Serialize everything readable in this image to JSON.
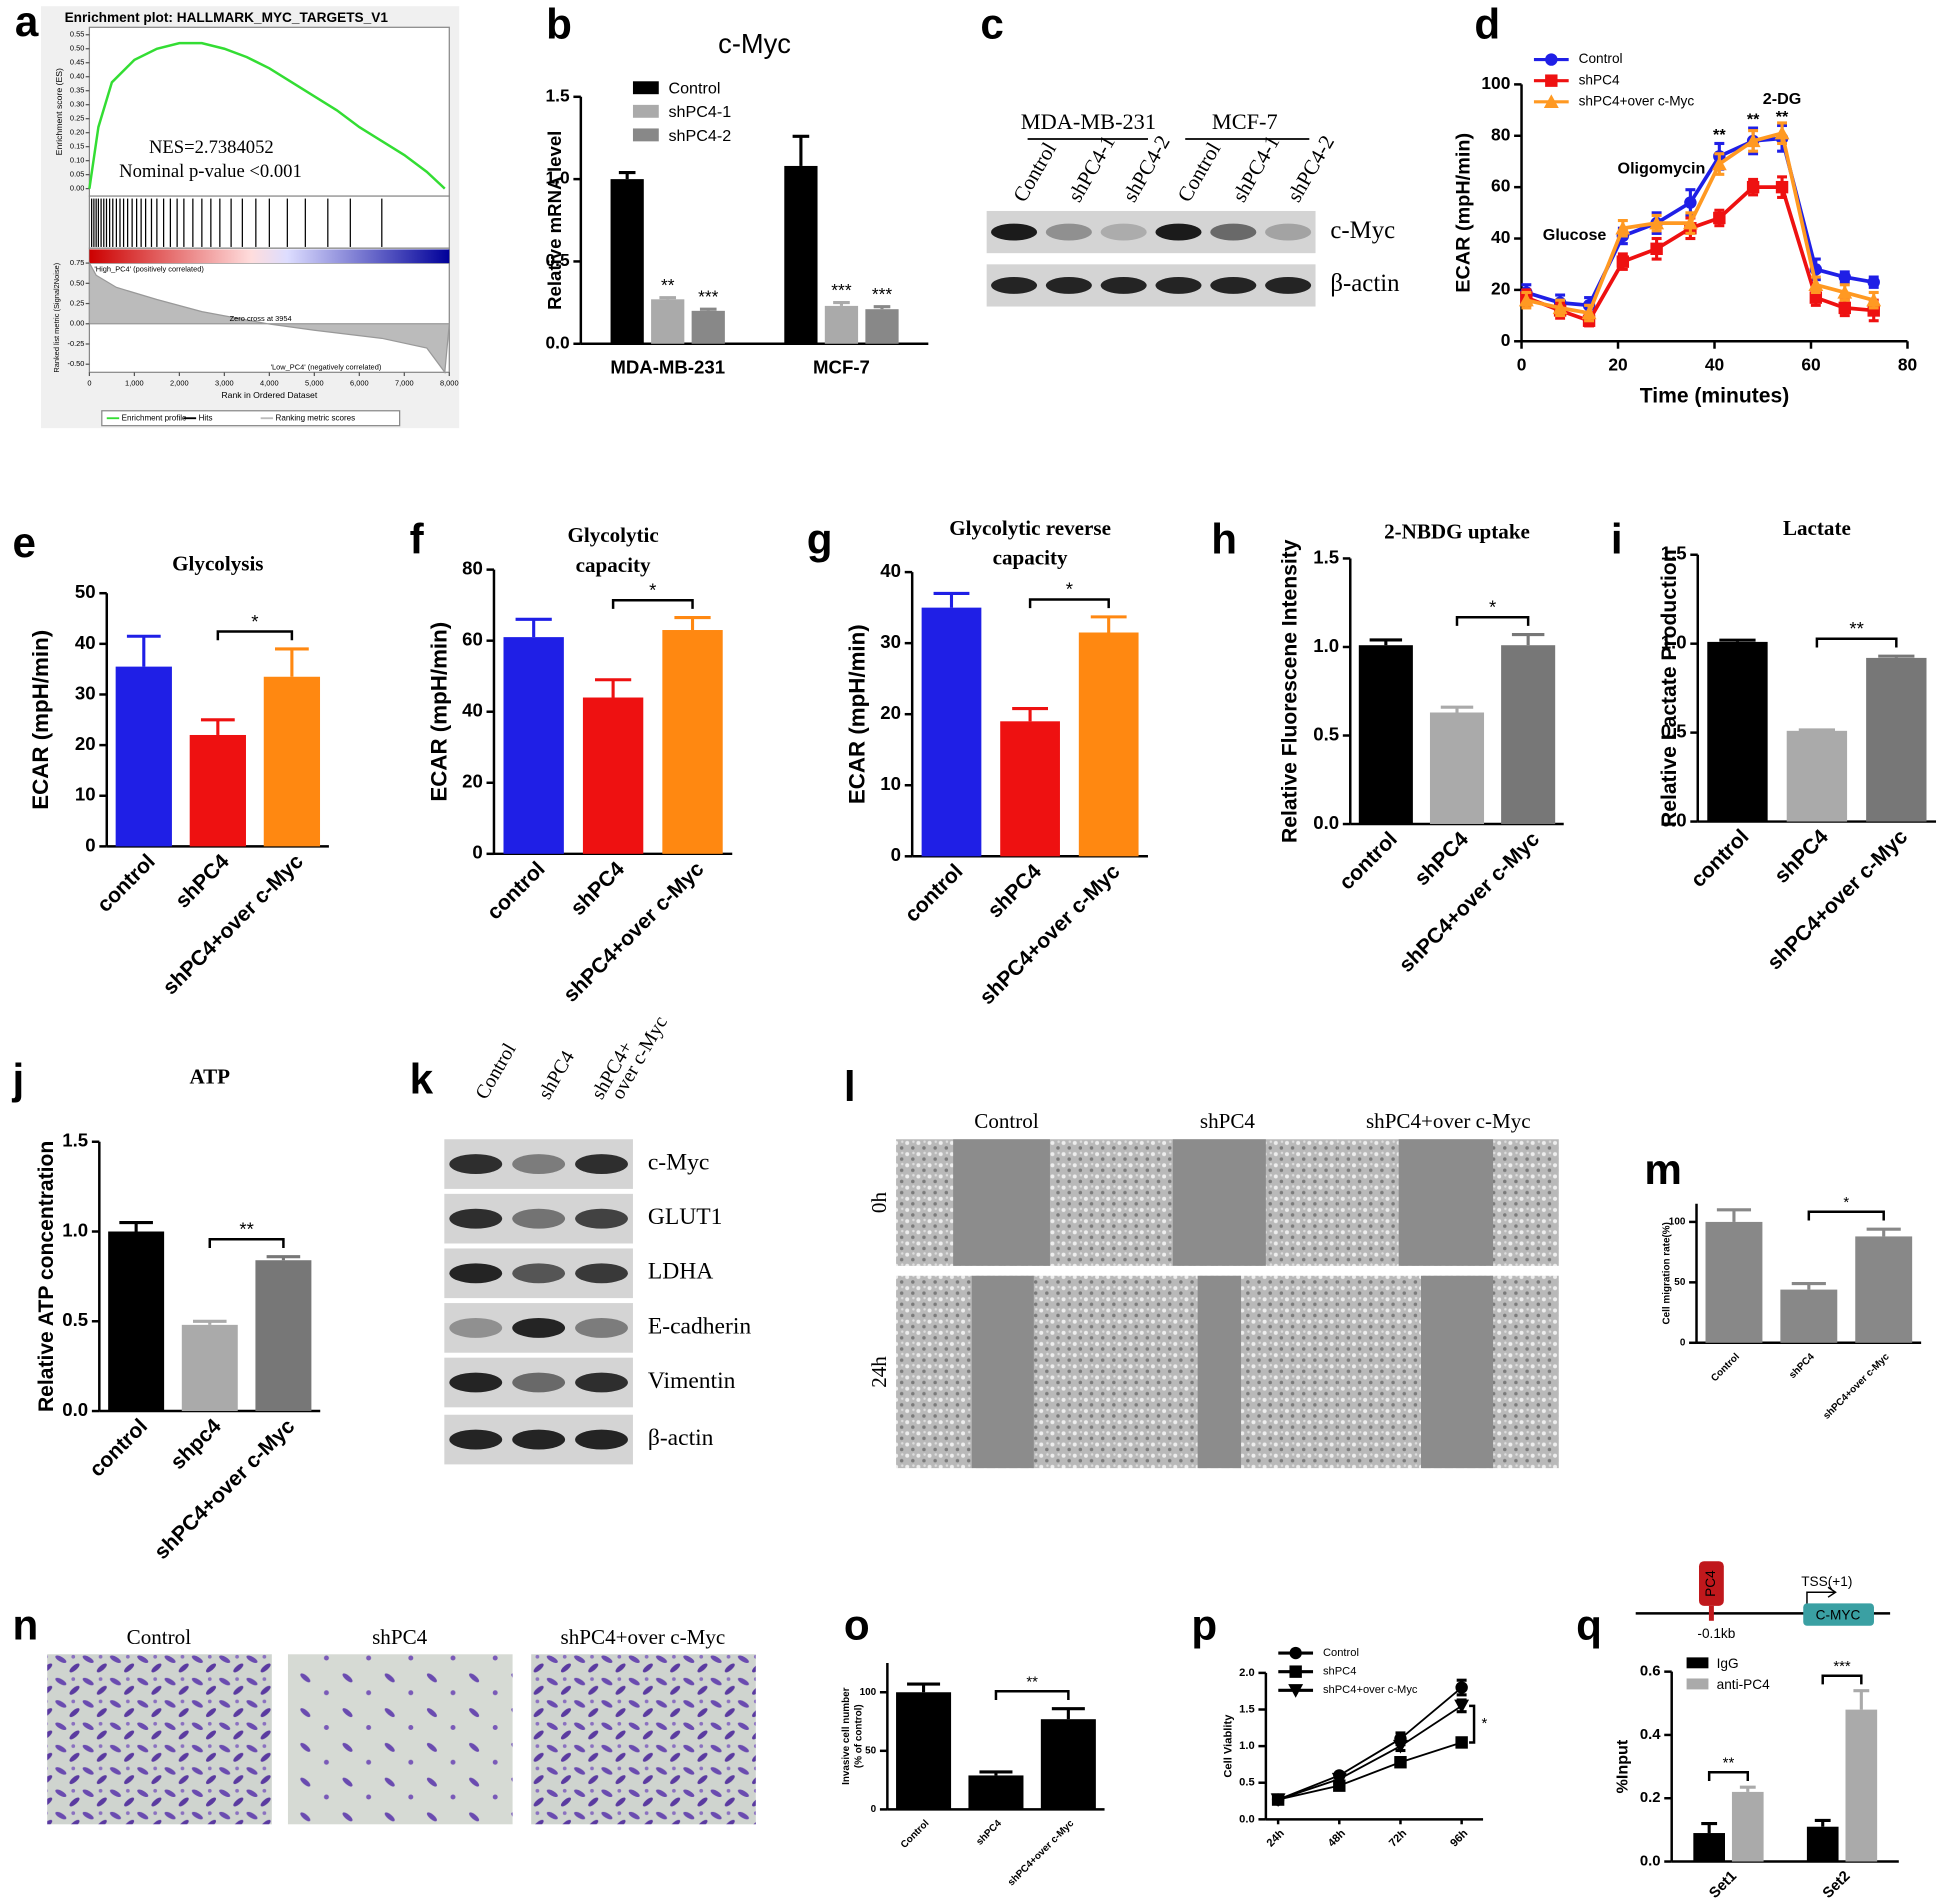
{
  "panel_labels": [
    "a",
    "b",
    "c",
    "d",
    "e",
    "f",
    "g",
    "h",
    "i",
    "j",
    "k",
    "l",
    "m",
    "n",
    "o",
    "p",
    "q"
  ],
  "chart_data": [
    {
      "type": "gsea",
      "title": "Enrichment plot: HALLMARK_MYC_TARGETS_V1",
      "ylabel": "Enrichment score (ES)",
      "x": [
        0,
        200,
        500,
        1000,
        1500,
        2000,
        2500,
        3000,
        3500,
        4000,
        4500,
        5000,
        5500,
        6000,
        6500,
        7000,
        7500,
        7900
      ],
      "values": [
        0,
        0.22,
        0.38,
        0.46,
        0.5,
        0.52,
        0.52,
        0.5,
        0.47,
        0.43,
        0.38,
        0.33,
        0.28,
        0.22,
        0.17,
        0.12,
        0.06,
        0
      ],
      "color": "#33dd33",
      "xlim": [
        0,
        8000
      ],
      "ylim": [
        0,
        0.55
      ],
      "yticks": [
        {
          "value": 0,
          "label": "0.00"
        },
        0.05,
        {
          "value": 0.1,
          "label": "0.10"
        },
        0.15,
        {
          "value": 0.2,
          "label": "0.20"
        },
        0.25,
        {
          "value": 0.3,
          "label": "0.30"
        },
        0.35,
        {
          "value": 0.4,
          "label": "0.40"
        },
        0.45,
        {
          "value": 0.5,
          "label": "0.50"
        },
        0.55
      ],
      "hits": [
        50,
        100,
        150,
        200,
        260,
        320,
        380,
        450,
        520,
        600,
        680,
        760,
        850,
        950,
        1050,
        1150,
        1250,
        1380,
        1500,
        1650,
        1800,
        1950,
        2100,
        2300,
        2500,
        2700,
        2900,
        3150,
        3400,
        3700,
        4000,
        4400,
        4800,
        5300,
        5800,
        6500
      ],
      "metric_x": [
        0,
        150,
        600,
        1500,
        2500,
        3954,
        5000,
        6500,
        7500,
        7900
      ],
      "metric": [
        0.75,
        0.6,
        0.45,
        0.3,
        0.15,
        0,
        -0.08,
        -0.18,
        -0.3,
        -0.6
      ],
      "metric_ylim": [
        -0.6,
        0.75
      ],
      "metric_yticks": [
        0.75,
        {
          "value": 0.5,
          "label": "0.50"
        },
        0.25,
        {
          "value": 0,
          "label": "0.00"
        },
        -0.25,
        {
          "value": -0.5,
          "label": "-0.50"
        }
      ],
      "metric_label": "Ranked list metric (Signal2Noise)",
      "xticks": [
        0,
        {
          "value": 1000,
          "label": "1,000"
        },
        {
          "value": 2000,
          "label": "2,000"
        },
        {
          "value": 3000,
          "label": "3,000"
        },
        {
          "value": 4000,
          "label": "4,000"
        },
        {
          "value": 5000,
          "label": "5,000"
        },
        {
          "value": 6000,
          "label": "6,000"
        },
        {
          "value": 7000,
          "label": "7,000"
        },
        {
          "value": 8000,
          "label": "8,000"
        }
      ],
      "xlabel": "Rank in Ordered Dataset",
      "nes": "NES=2.7384052",
      "pvalue": "Nominal p-value <0.001",
      "high_label": "'High_PC4' (positively correlated)",
      "low_label": "'Low_PC4' (negatively correlated)",
      "zero_cross": "Zero cross at 3954",
      "legend": [
        "Enrichment profile",
        "Hits",
        "Ranking metric scores"
      ]
    },
    {
      "type": "bar",
      "title": "c-Myc",
      "ylabel": "Relative mRNA level",
      "categories": [
        "MDA-MB-231",
        "MCF-7"
      ],
      "series": [
        {
          "name": "Control",
          "color": "#000000",
          "values": [
            1.0,
            1.08
          ],
          "errors": [
            0.04,
            0.18
          ]
        },
        {
          "name": "shPC4-1",
          "color": "#aaaaaa",
          "values": [
            0.27,
            0.23
          ],
          "errors": [
            0.01,
            0.02
          ],
          "stars": [
            "**",
            "***"
          ]
        },
        {
          "name": "shPC4-2",
          "color": "#888888",
          "values": [
            0.2,
            0.21
          ],
          "errors": [
            0.01,
            0.015
          ],
          "stars": [
            "***",
            "***"
          ]
        }
      ],
      "ylim": [
        0,
        1.5
      ],
      "yticks": [
        {
          "value": 0,
          "label": "0.0"
        },
        0.5,
        {
          "value": 1,
          "label": "1.0"
        },
        1.5
      ],
      "legend": "upper right"
    },
    {
      "type": "line",
      "ylabel": "ECAR (mpH/min)",
      "xlabel": "Time (minutes)",
      "x": [
        1,
        8,
        14,
        21,
        28,
        35,
        41,
        48,
        54,
        61,
        67,
        73
      ],
      "series": [
        {
          "name": "Control",
          "color": "#1f1fe6",
          "marker": "circle",
          "values": [
            19,
            15,
            14,
            41,
            46,
            54,
            72,
            78,
            79,
            28,
            25,
            23
          ],
          "errors": [
            3,
            3,
            3,
            3,
            4,
            5,
            5,
            5,
            5,
            4,
            2,
            2
          ]
        },
        {
          "name": "shPC4",
          "color": "#ee1111",
          "marker": "square",
          "values": [
            17,
            12,
            8,
            31,
            36,
            44,
            48,
            60,
            60,
            17,
            13,
            12
          ],
          "errors": [
            3,
            3,
            2,
            3,
            4,
            4,
            3,
            3,
            4,
            3,
            3,
            4
          ]
        },
        {
          "name": "shPC4+over c-Myc",
          "color": "#ff9922",
          "marker": "triangle",
          "values": [
            16,
            13,
            11,
            44,
            46,
            46,
            69,
            78,
            81,
            22,
            19,
            16
          ],
          "errors": [
            3,
            3,
            3,
            3,
            3,
            4,
            4,
            4,
            4,
            3,
            3,
            3
          ]
        }
      ],
      "xlim": [
        0,
        80
      ],
      "xticks": [
        0,
        20,
        40,
        60,
        80
      ],
      "ylim": [
        0,
        100
      ],
      "yticks": [
        0,
        20,
        40,
        60,
        80,
        100
      ],
      "legend": "upper left",
      "annotations": [
        {
          "text": "Glucose",
          "x": 11,
          "y": 41
        },
        {
          "text": "Oligomycin",
          "x": 29,
          "y": 67
        },
        {
          "text": "2-DG",
          "x": 54,
          "y": 94
        },
        {
          "text": "**",
          "x": 41,
          "y": 80
        },
        {
          "text": "**",
          "x": 48,
          "y": 86
        },
        {
          "text": "**",
          "x": 54,
          "y": 87
        }
      ]
    },
    {
      "type": "bar",
      "title": "Glycolysis",
      "ylabel": "ECAR (mpH/min)",
      "categories": [
        "control",
        "shPC4",
        "shPC4+over c-Myc"
      ],
      "values": [
        35.5,
        22,
        33.5
      ],
      "errors": [
        6,
        3,
        5.5
      ],
      "colors": [
        "#1f1fe6",
        "#ee1111",
        "#ff8811"
      ],
      "ylim": [
        0,
        50
      ],
      "yticks": [
        0,
        10,
        20,
        30,
        40,
        50
      ],
      "bracket_label": "*"
    },
    {
      "type": "bar",
      "title": [
        "Glycolytic",
        "capacity"
      ],
      "ylabel": "ECAR (mpH/min)",
      "categories": [
        "control",
        "shPC4",
        "shPC4+over c-Myc"
      ],
      "values": [
        61,
        44,
        63
      ],
      "errors": [
        5,
        5,
        3.5
      ],
      "colors": [
        "#1f1fe6",
        "#ee1111",
        "#ff8811"
      ],
      "ylim": [
        0,
        80
      ],
      "yticks": [
        0,
        20,
        40,
        60,
        80
      ],
      "bracket_label": "*"
    },
    {
      "type": "bar",
      "title": [
        "Glycolytic reverse",
        "capacity"
      ],
      "ylabel": "ECAR (mpH/min)",
      "categories": [
        "control",
        "shPC4",
        "shPC4+over c-Myc"
      ],
      "values": [
        35,
        19,
        31.5
      ],
      "errors": [
        2,
        1.8,
        2.2
      ],
      "colors": [
        "#1f1fe6",
        "#ee1111",
        "#ff8811"
      ],
      "ylim": [
        0,
        40
      ],
      "yticks": [
        0,
        10,
        20,
        30,
        40
      ],
      "bracket_label": "*"
    },
    {
      "type": "bar",
      "title": "2-NBDG uptake",
      "ylabel": "Relative Fluorescene Intensity",
      "categories": [
        "control",
        "shPC4",
        "shPC4+over c-Myc"
      ],
      "values": [
        1.01,
        0.63,
        1.01
      ],
      "errors": [
        0.03,
        0.03,
        0.06
      ],
      "colors": [
        "#000000",
        "#aaaaaa",
        "#777777"
      ],
      "ylim": [
        0,
        1.5
      ],
      "yticks": [
        {
          "value": 0,
          "label": "0.0"
        },
        0.5,
        {
          "value": 1,
          "label": "1.0"
        },
        1.5
      ],
      "bracket_label": "*"
    },
    {
      "type": "bar",
      "title": "Lactate",
      "ylabel": "Relative Lactate Production",
      "categories": [
        "control",
        "shPC4",
        "shPC4+over c-Myc"
      ],
      "values": [
        1.01,
        0.51,
        0.92
      ],
      "errors": [
        0.01,
        0.005,
        0.01
      ],
      "colors": [
        "#000000",
        "#aaaaaa",
        "#777777"
      ],
      "ylim": [
        0,
        1.5
      ],
      "yticks": [
        {
          "value": 0,
          "label": "0.0"
        },
        0.5,
        {
          "value": 1,
          "label": "1.0"
        },
        1.5
      ],
      "bracket_label": "**"
    },
    {
      "type": "bar",
      "title": "ATP",
      "ylabel": "Relative ATP concentration",
      "categories": [
        "control",
        "shpc4",
        "shPC4+over c-Myc"
      ],
      "values": [
        1.0,
        0.48,
        0.84
      ],
      "errors": [
        0.05,
        0.02,
        0.02
      ],
      "colors": [
        "#000000",
        "#aaaaaa",
        "#777777"
      ],
      "ylim": [
        0,
        1.5
      ],
      "yticks": [
        {
          "value": 0,
          "label": "0.0"
        },
        0.5,
        {
          "value": 1,
          "label": "1.0"
        },
        1.5
      ],
      "bracket_label": "**"
    },
    {
      "type": "bar",
      "ylabel": "Cell migration rate(%)",
      "categories": [
        "Control",
        "shPC4",
        "shPC4+over c-Myc"
      ],
      "values": [
        100,
        44,
        88
      ],
      "errors": [
        10,
        5,
        6
      ],
      "colors": [
        "#888888",
        "#888888",
        "#888888"
      ],
      "ylim": [
        0,
        115
      ],
      "yticks": [
        0,
        50,
        100
      ],
      "bracket_label": "*"
    },
    {
      "type": "bar",
      "ylabel": [
        "Invasive cell number",
        "(% of control)"
      ],
      "categories": [
        "Control",
        "shPC4",
        "shPC4+over c-Myc"
      ],
      "values": [
        100,
        29,
        77
      ],
      "errors": [
        7,
        3,
        9
      ],
      "colors": [
        "#000000",
        "#000000",
        "#000000"
      ],
      "ylim": [
        0,
        125
      ],
      "yticks": [
        0,
        50,
        100
      ],
      "bracket_label": "**"
    },
    {
      "type": "line",
      "ylabel": "Cell Viablity",
      "categories": [
        "24h",
        "48h",
        "72h",
        "96h"
      ],
      "series": [
        {
          "name": "Control",
          "color": "#000000",
          "marker": "circle",
          "values": [
            0.27,
            0.6,
            1.1,
            1.8
          ],
          "errors": [
            0.02,
            0.03,
            0.08,
            0.1
          ]
        },
        {
          "name": "shPC4",
          "color": "#000000",
          "marker": "square",
          "values": [
            0.27,
            0.46,
            0.78,
            1.05
          ],
          "errors": [
            0.02,
            0.03,
            0.04,
            0.06
          ]
        },
        {
          "name": "shPC4+over c-Myc",
          "color": "#000000",
          "marker": "triangle-down",
          "values": [
            0.27,
            0.55,
            1.0,
            1.55
          ],
          "errors": [
            0.02,
            0.03,
            0.06,
            0.08
          ]
        }
      ],
      "ylim": [
        0,
        2
      ],
      "yticks": [
        {
          "value": 0,
          "label": "0.0"
        },
        0.5,
        {
          "value": 1,
          "label": "1.0"
        },
        1.5,
        {
          "value": 2,
          "label": "2.0"
        }
      ],
      "legend": "upper left",
      "bracket_label": "*"
    },
    {
      "type": "bar",
      "ylabel": "%Input",
      "categories": [
        "Set1",
        "Set2"
      ],
      "series": [
        {
          "name": "IgG",
          "color": "#000000",
          "values": [
            0.09,
            0.11
          ],
          "errors": [
            0.03,
            0.02
          ]
        },
        {
          "name": "anti-PC4",
          "color": "#aaaaaa",
          "values": [
            0.22,
            0.48
          ],
          "errors": [
            0.015,
            0.06
          ]
        }
      ],
      "ylim": [
        0,
        0.6
      ],
      "yticks": [
        {
          "value": 0,
          "label": "0.0"
        },
        0.2,
        0.4,
        0.6
      ],
      "legend": "upper left",
      "bracket_labels": [
        "**",
        "***"
      ]
    }
  ],
  "blot_c": {
    "groups": [
      "MDA-MB-231",
      "MCF-7"
    ],
    "lanes": [
      "Control",
      "shPC4-1",
      "shPC4-2",
      "Control",
      "shPC4-1",
      "shPC4-2"
    ],
    "rows": [
      "c-Myc",
      "β-actin"
    ]
  },
  "blot_k": {
    "lanes": [
      "Control",
      "shPC4",
      [
        "shPC4+",
        "over c-Myc"
      ]
    ],
    "rows": [
      "c-Myc",
      "GLUT1",
      "LDHA",
      "E-cadherin",
      "Vimentin",
      "β-actin"
    ]
  },
  "wound_l": {
    "columns": [
      "Control",
      "shPC4",
      "shPC4+over c-Myc"
    ],
    "rows": [
      "0h",
      "24h"
    ]
  },
  "invasion_n": {
    "columns": [
      "Control",
      "shPC4",
      "shPC4+over c-Myc"
    ]
  },
  "diagram_q": {
    "factor": "PC4",
    "site": "-0.1kb",
    "tss": "TSS(+1)",
    "gene": "C-MYC"
  }
}
